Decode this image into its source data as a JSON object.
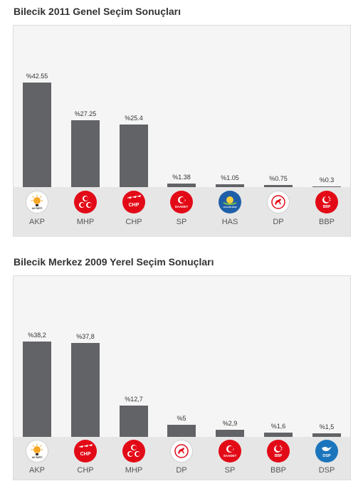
{
  "chart_data": [
    {
      "type": "bar",
      "title": "Bilecik 2011 Genel Seçim Sonuçları",
      "categories": [
        "AKP",
        "MHP",
        "CHP",
        "SP",
        "HAS",
        "DP",
        "BBP"
      ],
      "values": [
        42.55,
        27.25,
        25.4,
        1.38,
        1.05,
        0.75,
        0.3
      ],
      "labels": [
        "%42.55",
        "%27.25",
        "%25.4",
        "%1.38",
        "%1.05",
        "%0.75",
        "%0.3"
      ],
      "logos": [
        {
          "party": "akp",
          "icon": "akp-bulb-icon",
          "text": "AK PARTİ",
          "bg": "#ffffff",
          "fg": "#f5a623"
        },
        {
          "party": "mhp",
          "icon": "mhp-crescents-icon",
          "text": "",
          "bg": "#e30a17",
          "fg": "#ffffff"
        },
        {
          "party": "chp",
          "icon": "chp-arrows-icon",
          "text": "CHP",
          "bg": "#e30a17",
          "fg": "#ffffff"
        },
        {
          "party": "sp",
          "icon": "saadet-icon",
          "text": "SAADET",
          "bg": "#e30a17",
          "fg": "#ffffff"
        },
        {
          "party": "has",
          "icon": "has-sun-icon",
          "text": "HALKIN SESİ",
          "bg": "#1f5fa8",
          "fg": "#f4d03f"
        },
        {
          "party": "dp",
          "icon": "dp-horse-icon",
          "text": "",
          "bg": "#ffffff",
          "fg": "#e30a17"
        },
        {
          "party": "bbp",
          "icon": "bbp-crescent-icon",
          "text": "BBP",
          "bg": "#e30a17",
          "fg": "#ffffff"
        }
      ],
      "bar_color": "#626366"
    },
    {
      "type": "bar",
      "title": "Bilecik Merkez 2009 Yerel Seçim Sonuçları",
      "categories": [
        "AKP",
        "CHP",
        "MHP",
        "DP",
        "SP",
        "BBP",
        "DSP"
      ],
      "values": [
        38.2,
        37.8,
        12.7,
        5,
        2.9,
        1.6,
        1.5
      ],
      "labels": [
        "%38,2",
        "%37,8",
        "%12,7",
        "%5",
        "%2,9",
        "%1,6",
        "%1,5"
      ],
      "logos": [
        {
          "party": "akp",
          "icon": "akp-bulb-icon",
          "text": "AK PARTİ",
          "bg": "#ffffff",
          "fg": "#f5a623"
        },
        {
          "party": "chp",
          "icon": "chp-arrows-icon",
          "text": "CHP",
          "bg": "#e30a17",
          "fg": "#ffffff"
        },
        {
          "party": "mhp",
          "icon": "mhp-crescents-icon",
          "text": "",
          "bg": "#e30a17",
          "fg": "#ffffff"
        },
        {
          "party": "dp",
          "icon": "dp-horse-icon",
          "text": "",
          "bg": "#ffffff",
          "fg": "#e30a17"
        },
        {
          "party": "sp",
          "icon": "saadet-icon",
          "text": "SAADET",
          "bg": "#e30a17",
          "fg": "#ffffff"
        },
        {
          "party": "bbp",
          "icon": "bbp-crescent-icon",
          "text": "BBP",
          "bg": "#e30a17",
          "fg": "#ffffff"
        },
        {
          "party": "dsp",
          "icon": "dsp-dove-icon",
          "text": "DSP",
          "bg": "#1b75bc",
          "fg": "#ffffff"
        }
      ],
      "bar_color": "#626366"
    }
  ]
}
